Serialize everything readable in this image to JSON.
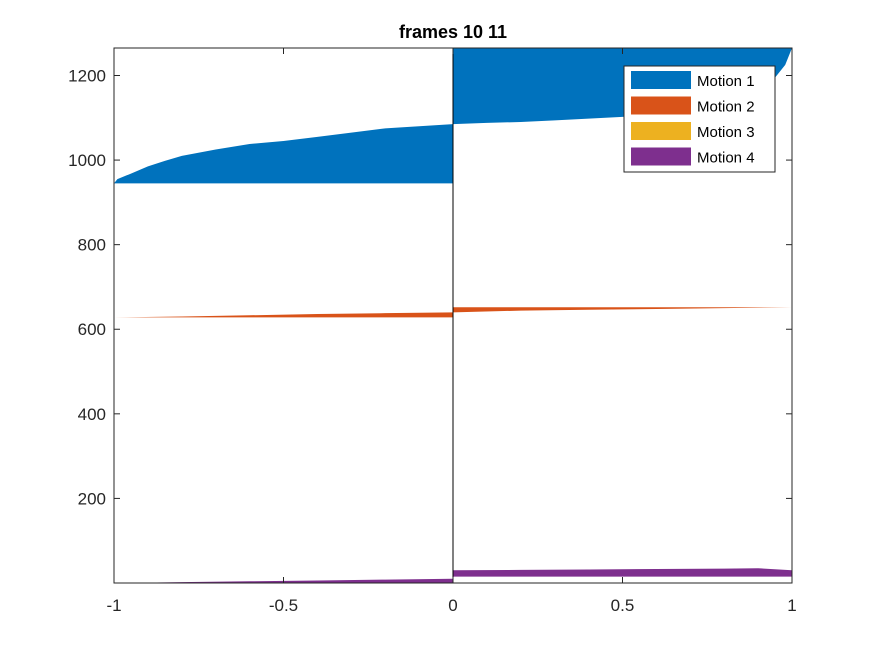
{
  "chart_data": {
    "type": "area",
    "title": "frames 10 11",
    "xlabel": "",
    "ylabel": "",
    "xlim": [
      -1,
      1
    ],
    "ylim": [
      0,
      1265
    ],
    "xticks": [
      -1,
      -0.5,
      0,
      0.5,
      1
    ],
    "xtick_labels": [
      "-1",
      "-0.5",
      "0",
      "0.5",
      "1"
    ],
    "yticks": [
      200,
      400,
      600,
      800,
      1000,
      1200
    ],
    "ytick_labels": [
      "200",
      "400",
      "600",
      "800",
      "1000",
      "1200"
    ],
    "grid": false,
    "legend_position": "top-right",
    "series": [
      {
        "name": "Motion 1",
        "color": "#0072BD",
        "left": [
          [
            -1,
            945
          ],
          [
            -0.99,
            955
          ],
          [
            -0.95,
            968
          ],
          [
            -0.9,
            985
          ],
          [
            -0.85,
            998
          ],
          [
            -0.8,
            1010
          ],
          [
            -0.7,
            1025
          ],
          [
            -0.6,
            1038
          ],
          [
            -0.5,
            1045
          ],
          [
            -0.4,
            1055
          ],
          [
            -0.3,
            1065
          ],
          [
            -0.2,
            1075
          ],
          [
            -0.1,
            1080
          ],
          [
            0,
            1085
          ]
        ],
        "left_base": 945,
        "right": [
          [
            0,
            1085
          ],
          [
            0.1,
            1088
          ],
          [
            0.2,
            1090
          ],
          [
            0.3,
            1094
          ],
          [
            0.4,
            1098
          ],
          [
            0.5,
            1102
          ],
          [
            0.6,
            1108
          ],
          [
            0.7,
            1118
          ],
          [
            0.8,
            1135
          ],
          [
            0.9,
            1165
          ],
          [
            0.95,
            1195
          ],
          [
            0.98,
            1225
          ],
          [
            1,
            1265
          ]
        ],
        "right_base": 1265
      },
      {
        "name": "Motion 2",
        "color": "#D95319",
        "left": [
          [
            -1,
            628
          ],
          [
            -0.8,
            630
          ],
          [
            -0.6,
            633
          ],
          [
            -0.4,
            636
          ],
          [
            -0.2,
            638
          ],
          [
            0,
            640
          ]
        ],
        "left_base": 628,
        "right": [
          [
            0,
            640
          ],
          [
            0.2,
            644
          ],
          [
            0.4,
            646
          ],
          [
            0.6,
            648
          ],
          [
            0.8,
            650
          ],
          [
            1,
            652
          ]
        ],
        "right_base": 652
      },
      {
        "name": "Motion 3",
        "color": "#EDB120",
        "left": [],
        "left_base": 0,
        "right": [],
        "right_base": 0
      },
      {
        "name": "Motion 4",
        "color": "#7E2F8E",
        "left": [
          [
            -1,
            0
          ],
          [
            -0.9,
            1
          ],
          [
            -0.8,
            2
          ],
          [
            -0.6,
            4
          ],
          [
            -0.4,
            6
          ],
          [
            -0.2,
            8
          ],
          [
            0,
            10
          ]
        ],
        "left_base": 0,
        "right": [
          [
            0,
            30
          ],
          [
            0.2,
            31
          ],
          [
            0.4,
            32
          ],
          [
            0.6,
            33
          ],
          [
            0.8,
            34
          ],
          [
            0.9,
            35
          ],
          [
            1,
            30
          ]
        ],
        "right_base": 15
      }
    ]
  }
}
